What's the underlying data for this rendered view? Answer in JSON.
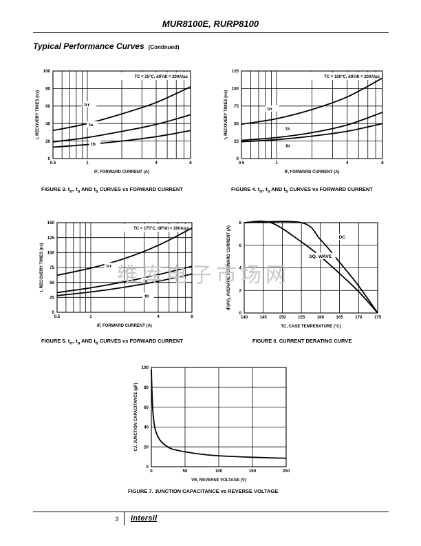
{
  "header": {
    "title": "MUR8100E, RURP8100"
  },
  "section": {
    "title": "Typical Performance Curves",
    "continued": "(Continued)"
  },
  "colors": {
    "line": "#000000",
    "grid": "#000000",
    "watermark": "#c8c8c8"
  },
  "watermark": {
    "text": "维库电子市场网"
  },
  "figures": [
    {
      "caption_prefix": "FIGURE 3. t",
      "caption_rest": " CURVES vs FORWARD CURRENT"
    },
    {
      "caption_prefix": "FIGURE 4. t",
      "caption_rest": " CURVES vs FORWARD CURRENT"
    },
    {
      "caption_prefix": "FIGURE 5. t",
      "caption_rest": " CURVES vs FORWARD CURRENT"
    },
    {
      "caption": "FIGURE 6.  CURRENT DERATING CURVE"
    },
    {
      "caption": "FIGURE 7.  JUNCTION CAPACITANCE vs REVERSE VOLTAGE"
    }
  ],
  "chart_data": [
    {
      "id": "fig3",
      "type": "line",
      "title": "FIGURE 3. trr, ta AND tb CURVES vs FORWARD CURRENT",
      "condition": "TC = 25°C, dIF/dt = 200A/µs",
      "xlabel": "IF, FORWARD CURRENT (A)",
      "ylabel": "t, RECOVERY TIMES (ns)",
      "xscale": "log",
      "xlim": [
        0.5,
        8
      ],
      "ylim": [
        0,
        100
      ],
      "xticks": [
        "0.5",
        "1",
        "4",
        "8"
      ],
      "yticks": [
        "0",
        "20",
        "40",
        "60",
        "80",
        "100"
      ],
      "series": [
        {
          "name": "trr",
          "x": [
            0.5,
            1,
            2,
            4,
            8
          ],
          "y": [
            32,
            40,
            51,
            64,
            82
          ]
        },
        {
          "name": "ta",
          "x": [
            0.5,
            1,
            2,
            4,
            8
          ],
          "y": [
            19,
            24,
            31,
            39,
            50
          ]
        },
        {
          "name": "tb",
          "x": [
            0.5,
            1,
            2,
            4,
            8
          ],
          "y": [
            13,
            16,
            20,
            25,
            32
          ]
        }
      ]
    },
    {
      "id": "fig4",
      "type": "line",
      "title": "FIGURE 4. trr, ta AND tb CURVES vs FORWARD CURRENT",
      "condition": "TC = 100°C, dIF/dt = 200A/µs",
      "xlabel": "IF, FORWARD CURRENT (A)",
      "ylabel": "t, RECOVERY TIMES (ns)",
      "xscale": "log",
      "xlim": [
        0.5,
        8
      ],
      "ylim": [
        0,
        125
      ],
      "xticks": [
        "0.5",
        "1",
        "4",
        "8"
      ],
      "yticks": [
        "0",
        "25",
        "50",
        "75",
        "100",
        "125"
      ],
      "series": [
        {
          "name": "trr",
          "x": [
            0.5,
            1,
            2,
            4,
            8
          ],
          "y": [
            49,
            57,
            70,
            88,
            115
          ]
        },
        {
          "name": "ta",
          "x": [
            0.5,
            1,
            2,
            4,
            8
          ],
          "y": [
            26,
            30,
            37,
            48,
            66
          ]
        },
        {
          "name": "tb",
          "x": [
            0.5,
            1,
            2,
            4,
            8
          ],
          "y": [
            24,
            27,
            32,
            39,
            50
          ]
        }
      ]
    },
    {
      "id": "fig5",
      "type": "line",
      "title": "FIGURE 5. trr, ta AND tb CURVES vs FORWARD CURRENT",
      "condition": "TC = 175°C, dIF/dt = 200A/µs",
      "xlabel": "IF, FORWARD CURRENT (A)",
      "ylabel": "t, RECOVERY TIMES (ns)",
      "xscale": "log",
      "xlim": [
        0.5,
        8
      ],
      "ylim": [
        0,
        150
      ],
      "xticks": [
        "0.5",
        "1",
        "4",
        "8"
      ],
      "yticks": [
        "0",
        "25",
        "50",
        "75",
        "100",
        "125",
        "150"
      ],
      "series": [
        {
          "name": "trr",
          "x": [
            0.5,
            1,
            2,
            4,
            8
          ],
          "y": [
            62,
            74,
            90,
            112,
            141
          ]
        },
        {
          "name": "ta",
          "x": [
            0.5,
            1,
            2,
            4,
            8
          ],
          "y": [
            33,
            41,
            51,
            63,
            77
          ]
        },
        {
          "name": "tb",
          "x": [
            0.5,
            1,
            2,
            4,
            8
          ],
          "y": [
            28,
            34,
            42,
            52,
            64
          ]
        }
      ]
    },
    {
      "id": "fig6",
      "type": "line",
      "title": "FIGURE 6. CURRENT DERATING CURVE",
      "xlabel": "TC, CASE TEMPERATURE (°C)",
      "ylabel": "IF(AV), AVERAGE FORWARD CURRENT (A)",
      "xscale": "linear",
      "xlim": [
        140,
        175
      ],
      "ylim": [
        0,
        8
      ],
      "xticks": [
        "140",
        "145",
        "150",
        "155",
        "160",
        "165",
        "170",
        "175"
      ],
      "yticks": [
        "0",
        "2",
        "4",
        "6",
        "8"
      ],
      "series": [
        {
          "name": "DC",
          "x": [
            140,
            155,
            160,
            165,
            170,
            175
          ],
          "y": [
            8,
            8,
            6.5,
            4.5,
            2.4,
            0
          ]
        },
        {
          "name": "SQ. WAVE",
          "x": [
            140,
            147,
            155,
            160,
            165,
            170,
            175
          ],
          "y": [
            8,
            8,
            6.3,
            5.0,
            3.5,
            1.9,
            0
          ]
        }
      ]
    },
    {
      "id": "fig7",
      "type": "line",
      "title": "FIGURE 7. JUNCTION CAPACITANCE vs REVERSE VOLTAGE",
      "xlabel": "VR, REVERSE VOLTAGE (V)",
      "ylabel": "CJ, JUNCTION CAPACITANCE (pF)",
      "xscale": "linear",
      "xlim": [
        0,
        200
      ],
      "ylim": [
        0,
        100
      ],
      "xticks": [
        "0",
        "50",
        "100",
        "150",
        "200"
      ],
      "yticks": [
        "0",
        "20",
        "40",
        "60",
        "80",
        "100"
      ],
      "series": [
        {
          "name": "CJ",
          "x": [
            0,
            1,
            2,
            4,
            6,
            10,
            15,
            20,
            30,
            50,
            75,
            100,
            150,
            200
          ],
          "y": [
            98,
            75,
            58,
            44,
            37,
            30,
            25,
            22,
            18,
            15,
            12.5,
            11,
            9.5,
            8.5
          ]
        }
      ]
    }
  ],
  "footer": {
    "page": "3",
    "logo": "intersil"
  }
}
